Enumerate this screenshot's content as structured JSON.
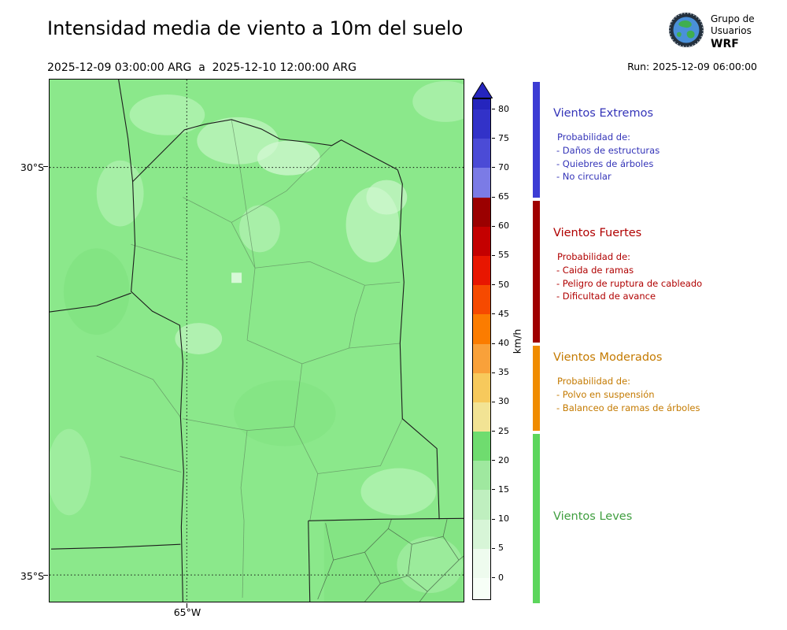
{
  "header": {
    "title": "Intensidad media de viento a 10m del suelo",
    "period": "2025-12-09 03:00:00 ARG  a  2025-12-10 12:00:00 ARG",
    "run_label": "Run: 2025-12-09 06:00:00",
    "logo": {
      "org_line1": "Grupo de",
      "org_line2": "Usuarios",
      "model": "WRF"
    }
  },
  "map": {
    "lat_ticks": [
      {
        "label": "30°S"
      },
      {
        "label": "35°S"
      }
    ],
    "lon_tick": "65°W",
    "colors": {
      "base": "#8be88b",
      "light": "#b2f2b2",
      "lighter": "#d6f9d6",
      "dark": "#7cdf7c",
      "border": "#1c1c1c",
      "dept": "#567a56"
    }
  },
  "colorbar": {
    "unit": "km/h",
    "ticks": [
      0,
      5,
      10,
      15,
      20,
      25,
      30,
      35,
      40,
      45,
      50,
      55,
      60,
      65,
      70,
      75,
      80
    ],
    "segments": [
      {
        "from": 0,
        "to": 5,
        "color": "#eefbee"
      },
      {
        "from": 5,
        "to": 10,
        "color": "#d7f5d7"
      },
      {
        "from": 10,
        "to": 15,
        "color": "#bfefbf"
      },
      {
        "from": 15,
        "to": 20,
        "color": "#9fe89f"
      },
      {
        "from": 20,
        "to": 25,
        "color": "#6fdc6f"
      },
      {
        "from": 25,
        "to": 30,
        "color": "#f2e394"
      },
      {
        "from": 30,
        "to": 35,
        "color": "#f7c95c"
      },
      {
        "from": 35,
        "to": 40,
        "color": "#f9a13a"
      },
      {
        "from": 40,
        "to": 45,
        "color": "#fb7c00"
      },
      {
        "from": 45,
        "to": 50,
        "color": "#f64a00"
      },
      {
        "from": 50,
        "to": 55,
        "color": "#e81600"
      },
      {
        "from": 55,
        "to": 60,
        "color": "#c40000"
      },
      {
        "from": 60,
        "to": 65,
        "color": "#9b0000"
      },
      {
        "from": 65,
        "to": 70,
        "color": "#7b7be6"
      },
      {
        "from": 70,
        "to": 75,
        "color": "#4b4bd6"
      },
      {
        "from": 75,
        "to": 80,
        "color": "#3232c8"
      },
      {
        "from": 80,
        "to": 85,
        "color": "#2525bd"
      }
    ],
    "under_color": "#f7fff7",
    "over_color": "#2525bd"
  },
  "legend": {
    "sections": [
      {
        "title": "Vientos Extremos",
        "text_color": "#3434b8",
        "strip_color": "#3c3cd4",
        "prob_label": "Probabilidad de:",
        "items": [
          "- Daños de estructuras",
          "- Quiebres de árboles",
          "- No circular"
        ]
      },
      {
        "title": "Vientos Fuertes",
        "text_color": "#b00000",
        "strip_color": "#a00000",
        "prob_label": "Probabilidad de:",
        "items": [
          "- Caida de ramas",
          "- Peligro de ruptura de cableado",
          "- Dificultad de avance"
        ]
      },
      {
        "title": "Vientos Moderados",
        "text_color": "#c47a00",
        "strip_color": "#f08c00",
        "prob_label": "Probabilidad de:",
        "items": [
          "- Polvo en suspensión",
          "- Balanceo de ramas de árboles"
        ]
      },
      {
        "title": "Vientos Leves",
        "text_color": "#3f9e3f",
        "strip_color": "#5cd65c",
        "prob_label": "",
        "items": []
      }
    ]
  }
}
